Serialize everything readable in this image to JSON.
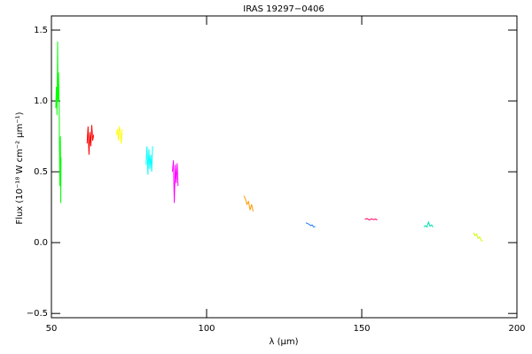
{
  "chart_data": {
    "type": "line",
    "title": "IRAS 19297−0406",
    "xlabel": "λ (μm)",
    "ylabel": "Flux (10⁻¹⁸ W cm⁻² μm⁻¹)",
    "xlim": [
      50,
      200
    ],
    "ylim": [
      -0.53,
      1.6
    ],
    "xticks": [
      50,
      100,
      150,
      200
    ],
    "yticks": [
      {
        "value": -0.5,
        "label": "−0.5"
      },
      {
        "value": 0,
        "label": "0.0"
      },
      {
        "value": 0.5,
        "label": "0.5"
      },
      {
        "value": 1,
        "label": "1.0"
      },
      {
        "value": 1.5,
        "label": "1.5"
      }
    ],
    "series": [
      {
        "color": "#00ff00",
        "x": [
          51.4,
          51.6,
          51.8,
          52.0,
          52.1,
          52.3,
          52.5,
          52.7,
          52.9,
          53.0,
          53.1
        ],
        "values": [
          0.95,
          1.1,
          0.9,
          1.42,
          1.0,
          1.2,
          0.95,
          0.4,
          0.75,
          0.28,
          0.6
        ]
      },
      {
        "color": "#ff0000",
        "x": [
          61.5,
          61.8,
          62.1,
          62.4,
          62.7,
          63.0,
          63.3,
          63.6
        ],
        "values": [
          0.7,
          0.82,
          0.62,
          0.78,
          0.68,
          0.83,
          0.72,
          0.76
        ]
      },
      {
        "color": "#ffff00",
        "x": [
          71.0,
          71.3,
          71.6,
          71.9,
          72.2,
          72.5,
          72.8
        ],
        "values": [
          0.76,
          0.8,
          0.72,
          0.82,
          0.78,
          0.7,
          0.8
        ]
      },
      {
        "color": "#00ffff",
        "x": [
          80.5,
          80.8,
          81.1,
          81.4,
          81.7,
          82.0,
          82.3,
          82.6
        ],
        "values": [
          0.55,
          0.68,
          0.48,
          0.66,
          0.52,
          0.62,
          0.5,
          0.68
        ]
      },
      {
        "color": "#ff00ff",
        "x": [
          89.0,
          89.3,
          89.6,
          89.9,
          90.2,
          90.5,
          90.8
        ],
        "values": [
          0.5,
          0.58,
          0.28,
          0.55,
          0.42,
          0.56,
          0.4
        ]
      },
      {
        "color": "#ff9900",
        "x": [
          112.0,
          112.5,
          113.0,
          113.5,
          114.0,
          114.5,
          115.0
        ],
        "values": [
          0.33,
          0.31,
          0.27,
          0.29,
          0.23,
          0.27,
          0.22
        ]
      },
      {
        "color": "#1e78ff",
        "x": [
          132.0,
          132.5,
          133.0,
          133.5,
          134.0,
          134.5,
          135.0
        ],
        "values": [
          0.14,
          0.135,
          0.13,
          0.12,
          0.125,
          0.11,
          0.115
        ]
      },
      {
        "color": "#ff0066",
        "x": [
          151.0,
          151.7,
          152.4,
          153.1,
          153.8,
          154.5,
          155.0
        ],
        "values": [
          0.165,
          0.17,
          0.16,
          0.168,
          0.163,
          0.166,
          0.16
        ]
      },
      {
        "color": "#00e0b0",
        "x": [
          170.0,
          170.5,
          171.0,
          171.5,
          172.0,
          172.5,
          173.0
        ],
        "values": [
          0.11,
          0.12,
          0.11,
          0.145,
          0.115,
          0.125,
          0.11
        ]
      },
      {
        "color": "#c8ff00",
        "x": [
          186.0,
          186.5,
          187.0,
          187.5,
          188.0,
          188.5,
          189.0
        ],
        "values": [
          0.07,
          0.05,
          0.06,
          0.03,
          0.04,
          0.015,
          0.01
        ]
      }
    ]
  }
}
